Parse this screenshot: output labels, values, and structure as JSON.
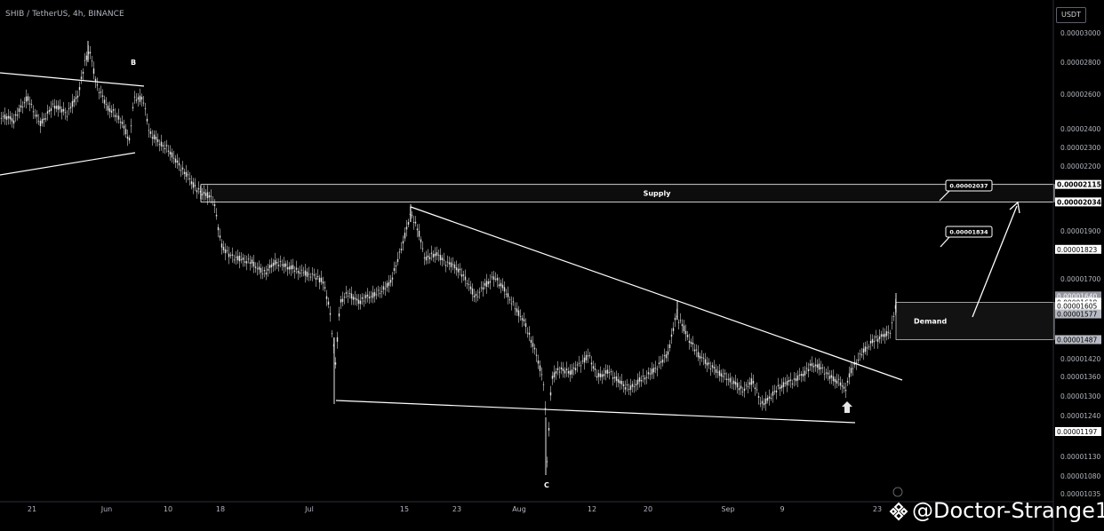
{
  "header": {
    "symbol_line": "SHIB / TetherUS, 4h, BINANCE"
  },
  "currency_button": "USDT",
  "watermark": "@Doctor-Strange1",
  "colors": {
    "background": "#000000",
    "candles": "#e6e6e6",
    "lines": "#ffffff",
    "price_tag_bg": "#ffffff"
  },
  "chart_data": {
    "type": "candlestick",
    "title": "",
    "y_axis_ticks": [
      "0.00003000",
      "0.00002800",
      "0.00002600",
      "0.00002400",
      "0.00002300",
      "0.00002200",
      "0.00001900",
      "0.00001700",
      "0.00001420",
      "0.00001360",
      "0.00001300",
      "0.00001240",
      "0.00001130",
      "0.00001080",
      "0.00001035"
    ],
    "x_axis_ticks": [
      "21",
      "Jun",
      "10",
      "18",
      "Jul",
      "15",
      "23",
      "Aug",
      "12",
      "20",
      "Sep",
      "9",
      "23"
    ],
    "price_tags": [
      {
        "label": "0.00002115",
        "price": 2.115e-05
      },
      {
        "label": "0.00002034",
        "price": 2.034e-05
      },
      {
        "label": "0.00001823",
        "price": 1.823e-05
      },
      {
        "label": "0.00001640",
        "price": 1.64e-05
      },
      {
        "label": "01:22:52",
        "price": 1.628e-05
      },
      {
        "label": "0.00001618",
        "price": 1.618e-05
      },
      {
        "label": "0.00001605",
        "price": 1.605e-05
      },
      {
        "label": "0.00001577",
        "price": 1.577e-05
      },
      {
        "label": "0.00001487",
        "price": 1.487e-05
      },
      {
        "label": "0.00001197",
        "price": 1.197e-05
      }
    ],
    "annotations": [
      {
        "label": "B"
      },
      {
        "label": "C"
      },
      {
        "label": "Supply",
        "top": 2.115e-05,
        "bottom": 2.034e-05
      },
      {
        "label": "Demand",
        "top": 1.618e-05,
        "bottom": 1.487e-05
      },
      {
        "label": "0.00002037"
      },
      {
        "label": "0.00001834"
      }
    ],
    "grid": false
  }
}
